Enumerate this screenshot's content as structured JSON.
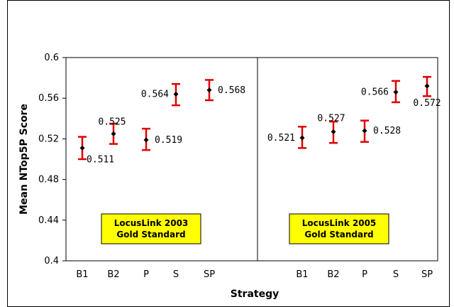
{
  "chart_data": [
    {
      "type": "scatter",
      "panel_label": [
        "LocusLink 2003",
        "Gold Standard"
      ],
      "categories": [
        "B1",
        "B2",
        "P",
        "S",
        "SP"
      ],
      "values": [
        0.511,
        0.525,
        0.519,
        0.564,
        0.568
      ],
      "value_labels": [
        "0.511",
        "0.525",
        "0.519",
        "0.564",
        "0.568"
      ],
      "error_low": [
        0.5,
        0.515,
        0.509,
        0.553,
        0.558
      ],
      "error_high": [
        0.522,
        0.535,
        0.53,
        0.574,
        0.578
      ],
      "ylabel": "Mean NTop5P Score",
      "xlabel": "Strategy",
      "ylim": [
        0.4,
        0.6
      ],
      "yticks": [
        "0.6",
        "0.56",
        "0.52",
        "0.48",
        "0.44",
        "0.4"
      ]
    },
    {
      "type": "scatter",
      "panel_label": [
        "LocusLink 2005",
        "Gold Standard"
      ],
      "categories": [
        "B1",
        "B2",
        "P",
        "S",
        "SP"
      ],
      "values": [
        0.521,
        0.527,
        0.528,
        0.566,
        0.572
      ],
      "value_labels": [
        "0.521",
        "0.527",
        "0.528",
        "0.566",
        "0.572"
      ],
      "error_low": [
        0.511,
        0.516,
        0.517,
        0.556,
        0.562
      ],
      "error_high": [
        0.532,
        0.537,
        0.538,
        0.577,
        0.581
      ],
      "xlabel": "Strategy",
      "ylim": [
        0.4,
        0.6
      ]
    }
  ],
  "colors": {
    "errorbar": "#e00000",
    "marker": "#000000",
    "label_box": "#ffff00"
  }
}
